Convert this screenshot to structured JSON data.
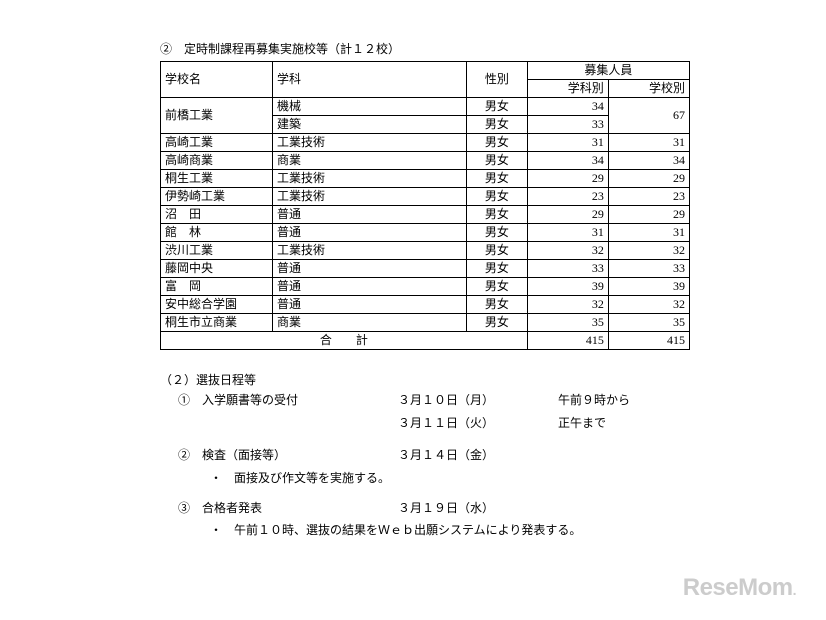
{
  "section_heading": "②　定時制課程再募集実施校等（計１２校）",
  "table": {
    "headers": {
      "school": "学校名",
      "dept": "学科",
      "gender": "性別",
      "quota": "募集人員",
      "quota_dept": "学科別",
      "quota_school": "学校別"
    },
    "rows": [
      {
        "school": "前橋工業",
        "dept": "機械",
        "gender": "男女",
        "dept_num": "34",
        "school_num": "67",
        "school_rowspan": 2
      },
      {
        "school": "",
        "dept": "建築",
        "gender": "男女",
        "dept_num": "33",
        "school_num": ""
      },
      {
        "school": "高崎工業",
        "dept": "工業技術",
        "gender": "男女",
        "dept_num": "31",
        "school_num": "31"
      },
      {
        "school": "高崎商業",
        "dept": "商業",
        "gender": "男女",
        "dept_num": "34",
        "school_num": "34"
      },
      {
        "school": "桐生工業",
        "dept": "工業技術",
        "gender": "男女",
        "dept_num": "29",
        "school_num": "29"
      },
      {
        "school": "伊勢崎工業",
        "dept": "工業技術",
        "gender": "男女",
        "dept_num": "23",
        "school_num": "23"
      },
      {
        "school": "沼　田",
        "dept": "普通",
        "gender": "男女",
        "dept_num": "29",
        "school_num": "29"
      },
      {
        "school": "館　林",
        "dept": "普通",
        "gender": "男女",
        "dept_num": "31",
        "school_num": "31"
      },
      {
        "school": "渋川工業",
        "dept": "工業技術",
        "gender": "男女",
        "dept_num": "32",
        "school_num": "32"
      },
      {
        "school": "藤岡中央",
        "dept": "普通",
        "gender": "男女",
        "dept_num": "33",
        "school_num": "33"
      },
      {
        "school": "富　岡",
        "dept": "普通",
        "gender": "男女",
        "dept_num": "39",
        "school_num": "39"
      },
      {
        "school": "安中総合学園",
        "dept": "普通",
        "gender": "男女",
        "dept_num": "32",
        "school_num": "32"
      },
      {
        "school": "桐生市立商業",
        "dept": "商業",
        "gender": "男女",
        "dept_num": "35",
        "school_num": "35"
      }
    ],
    "total": {
      "label": "合　　計",
      "dept_total": "415",
      "school_total": "415"
    }
  },
  "schedule": {
    "heading": "（２）選抜日程等",
    "items": [
      {
        "num": "①",
        "label": "入学願書等の受付",
        "lines": [
          {
            "date": "３月１０日（月）",
            "time": "午前９時から"
          },
          {
            "date": "３月１１日（火）",
            "time": "正午まで"
          }
        ]
      },
      {
        "num": "②",
        "label": "検査（面接等）",
        "lines": [
          {
            "date": "３月１４日（金）",
            "time": ""
          }
        ],
        "note": "・　面接及び作文等を実施する。"
      },
      {
        "num": "③",
        "label": "合格者発表",
        "lines": [
          {
            "date": "３月１９日（水）",
            "time": ""
          }
        ],
        "note": "・　午前１０時、選抜の結果をＷｅｂ出願システムにより発表する。"
      }
    ]
  },
  "watermark": "ReseMom"
}
